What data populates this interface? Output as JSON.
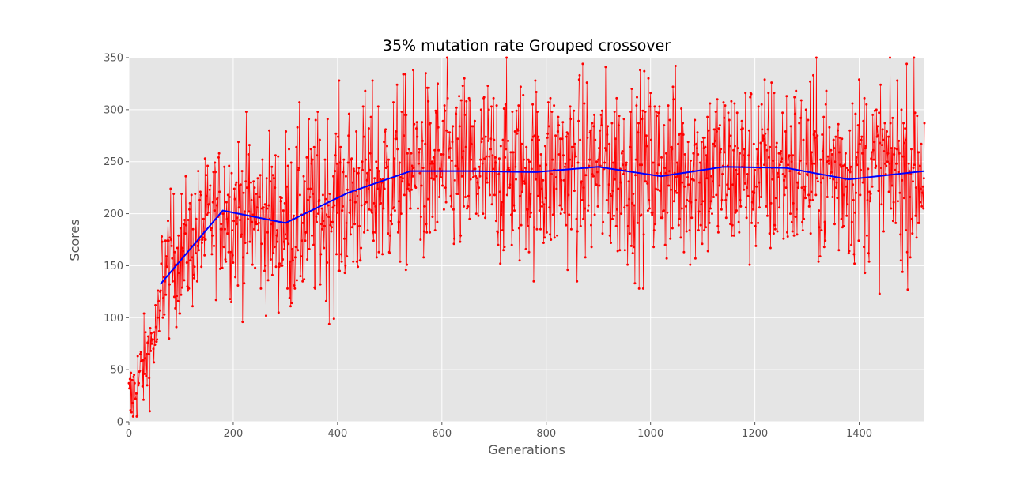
{
  "chart_data": {
    "type": "line",
    "title": "35% mutation rate  Grouped crossover",
    "xlabel": "Generations",
    "ylabel": "Scores",
    "xlim": [
      0,
      1525
    ],
    "ylim": [
      0,
      350
    ],
    "xticks": [
      0,
      200,
      400,
      600,
      800,
      1000,
      1200,
      1400
    ],
    "yticks": [
      0,
      50,
      100,
      150,
      200,
      250,
      300,
      350
    ],
    "grid": true,
    "legend": "none",
    "series": [
      {
        "role": "per-generation scores",
        "color": "#ff0000",
        "marker": "dot",
        "segments": [
          {
            "x_start": 0,
            "x_end": 60,
            "start": 15,
            "end": 95,
            "noise": 22
          },
          {
            "x_start": 60,
            "x_end": 180,
            "start": 140,
            "end": 205,
            "noise": 32
          },
          {
            "x_start": 180,
            "x_end": 300,
            "start": 205,
            "end": 190,
            "noise": 40
          },
          {
            "x_start": 300,
            "x_end": 540,
            "start": 190,
            "end": 240,
            "noise": 45
          },
          {
            "x_start": 540,
            "x_end": 1525,
            "start": 240,
            "end": 242,
            "noise": 45
          }
        ],
        "max": 350
      },
      {
        "role": "moving average",
        "color": "#0000ff",
        "x": [
          60,
          180,
          300,
          420,
          540,
          660,
          780,
          900,
          1020,
          1140,
          1260,
          1380,
          1525
        ],
        "values": [
          132,
          203,
          191,
          220,
          241,
          241,
          240,
          245,
          236,
          245,
          244,
          233,
          241
        ]
      }
    ]
  }
}
